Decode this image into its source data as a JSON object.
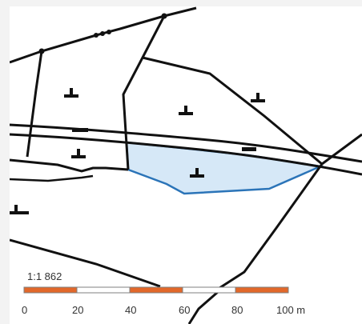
{
  "map": {
    "colors": {
      "background": "#ffffff",
      "frame": "#f3f3f3",
      "line": "#111111",
      "highlight_fill": "#d6e8f7",
      "highlight_stroke": "#2b74b8",
      "scale_orange": "#e2682a",
      "scale_white": "#ffffff"
    },
    "highlighted_parcel": "selected-parcel",
    "building_symbols": 7
  },
  "scale": {
    "ratio_label": "1:1 862",
    "ticks": [
      "0",
      "20",
      "40",
      "60",
      "80",
      "100 m"
    ],
    "segment_colors": [
      "orange",
      "white",
      "orange",
      "white",
      "orange"
    ]
  }
}
